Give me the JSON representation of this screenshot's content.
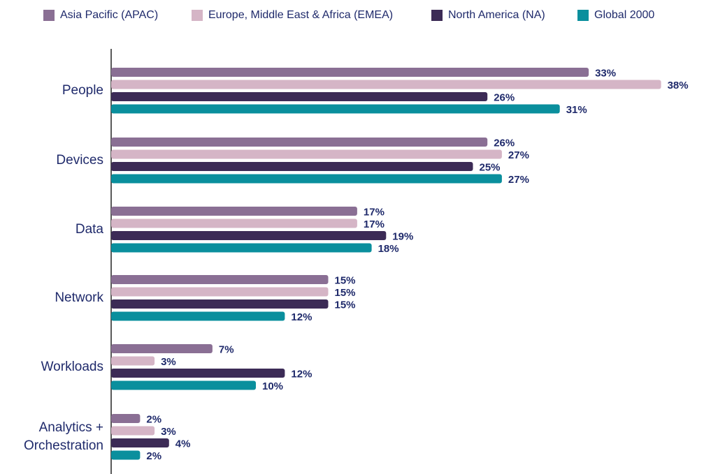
{
  "chart_data": {
    "type": "bar",
    "orientation": "horizontal",
    "categories": [
      "People",
      "Devices",
      "Data",
      "Network",
      "Workloads",
      "Analytics + Orchestration"
    ],
    "series": [
      {
        "name": "Asia Pacific (APAC)",
        "color": "#8a6f94",
        "values": [
          33,
          26,
          17,
          15,
          7,
          2
        ],
        "value_labels": [
          "33%",
          "26%",
          "17%",
          "15%",
          "7%",
          "2%"
        ]
      },
      {
        "name": "Europe, Middle East & Africa (EMEA)",
        "color": "#d5b5c6",
        "values": [
          38,
          27,
          17,
          15,
          3,
          3
        ],
        "value_labels": [
          "38%",
          "27%",
          "17%",
          "15%",
          "3%",
          "3%"
        ]
      },
      {
        "name": "North America (NA)",
        "color": "#3c2b56",
        "values": [
          26,
          25,
          19,
          15,
          12,
          4
        ],
        "value_labels": [
          "26%",
          "25%",
          "19%",
          "15%",
          "12%",
          "4%"
        ]
      },
      {
        "name": "Global 2000",
        "color": "#0a8f9d",
        "values": [
          31,
          27,
          18,
          12,
          10,
          2
        ],
        "value_labels": [
          "31%",
          "27%",
          "18%",
          "12%",
          "10%",
          "2%"
        ]
      }
    ],
    "legend": "top"
  }
}
